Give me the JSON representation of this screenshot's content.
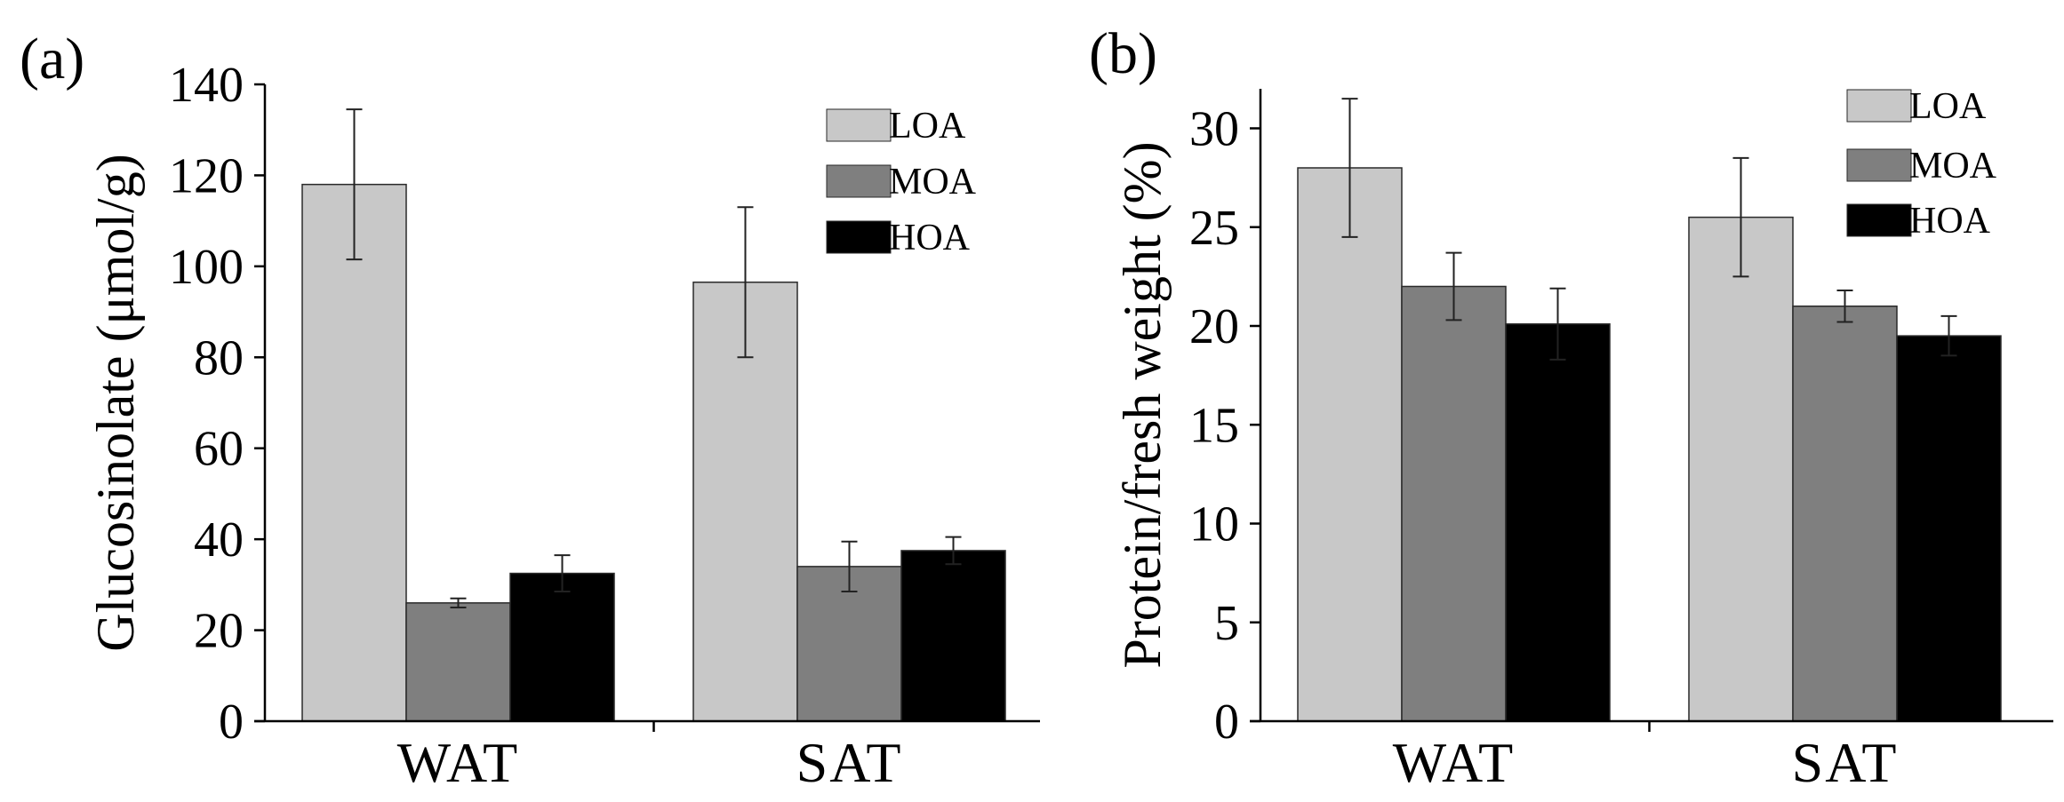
{
  "colors": {
    "LOA": "#c8c8c8",
    "MOA": "#7f7f7f",
    "HOA": "#000000"
  },
  "chart_data": [
    {
      "type": "bar",
      "panel_label": "(a)",
      "title": "",
      "xlabel": "",
      "ylabel": "Glucosinolate (μmol/g)",
      "categories": [
        "WAT",
        "SAT"
      ],
      "ylim": [
        0,
        140
      ],
      "yticks": [
        0,
        20,
        40,
        60,
        80,
        100,
        120,
        140
      ],
      "ytick_labels": [
        "0",
        "20",
        "40",
        "60",
        "80",
        "100",
        "120",
        "140"
      ],
      "legend_position": "top-right",
      "series": [
        {
          "name": "LOA",
          "values": [
            118,
            96.5
          ],
          "errors": [
            16.5,
            16.5
          ]
        },
        {
          "name": "MOA",
          "values": [
            26,
            34
          ],
          "errors": [
            1,
            5.5
          ]
        },
        {
          "name": "HOA",
          "values": [
            32.5,
            37.5
          ],
          "errors": [
            4,
            3
          ]
        }
      ]
    },
    {
      "type": "bar",
      "panel_label": "(b)",
      "title": "",
      "xlabel": "",
      "ylabel": "Protein/fresh weight (%)",
      "categories": [
        "WAT",
        "SAT"
      ],
      "ylim": [
        0,
        32
      ],
      "yticks": [
        0,
        5,
        10,
        15,
        20,
        25,
        30
      ],
      "ytick_labels": [
        "0",
        "5",
        "10",
        "15",
        "20",
        "25",
        "30"
      ],
      "legend_position": "top-right",
      "series": [
        {
          "name": "LOA",
          "values": [
            28,
            25.5
          ],
          "errors": [
            3.5,
            3
          ]
        },
        {
          "name": "MOA",
          "values": [
            22,
            21
          ],
          "errors": [
            1.7,
            0.8
          ]
        },
        {
          "name": "HOA",
          "values": [
            20.1,
            19.5
          ],
          "errors": [
            1.8,
            1
          ]
        }
      ]
    }
  ]
}
